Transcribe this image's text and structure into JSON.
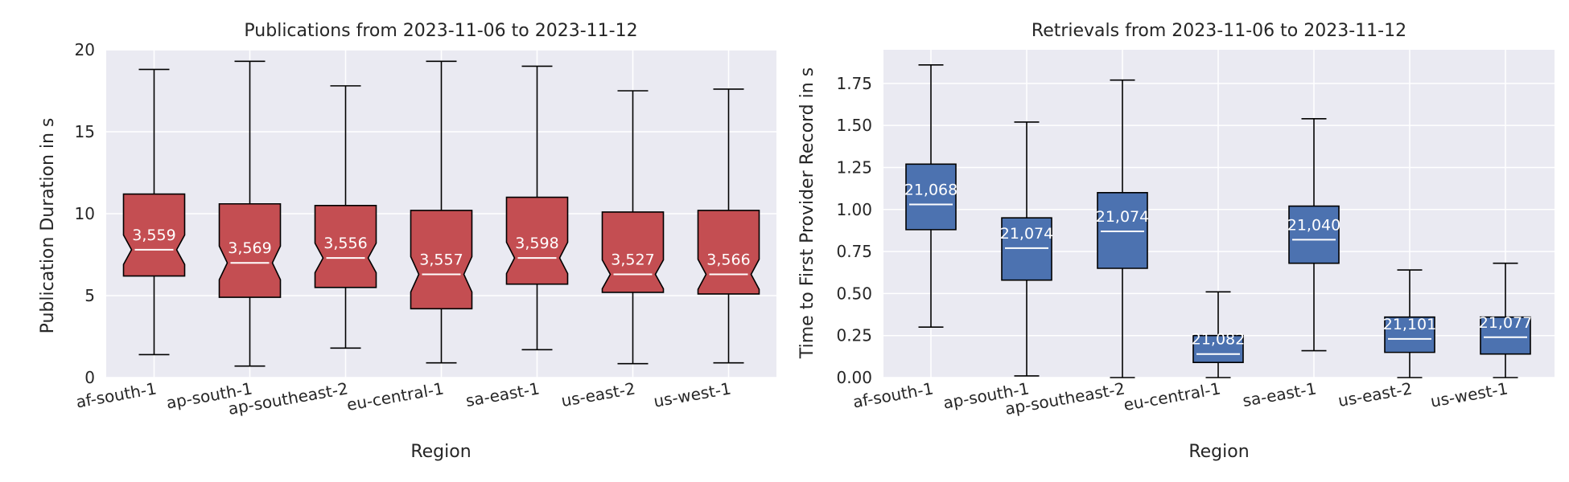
{
  "chart_data": [
    {
      "type": "box",
      "title": "Publications from 2023-11-06 to 2023-11-12",
      "xlabel": "Region",
      "ylabel": "Publication Duration in s",
      "ylim": [
        0,
        20
      ],
      "yticks": [
        0,
        5,
        10,
        15,
        20
      ],
      "ytick_labels": [
        "0",
        "5",
        "10",
        "15",
        "20"
      ],
      "grid": true,
      "notched": true,
      "box_color": "#c44e52",
      "categories": [
        "af-south-1",
        "ap-south-1",
        "ap-southeast-2",
        "eu-central-1",
        "sa-east-1",
        "us-east-2",
        "us-west-1"
      ],
      "boxes": [
        {
          "whislo": 1.4,
          "q1": 6.2,
          "med": 7.8,
          "q3": 11.2,
          "whishi": 18.8,
          "label": "3,559"
        },
        {
          "whislo": 0.7,
          "q1": 4.9,
          "med": 7.0,
          "q3": 10.6,
          "whishi": 19.3,
          "label": "3,569"
        },
        {
          "whislo": 1.8,
          "q1": 5.5,
          "med": 7.3,
          "q3": 10.5,
          "whishi": 17.8,
          "label": "3,556"
        },
        {
          "whislo": 0.9,
          "q1": 4.2,
          "med": 6.3,
          "q3": 10.2,
          "whishi": 19.3,
          "label": "3,557"
        },
        {
          "whislo": 1.7,
          "q1": 5.7,
          "med": 7.3,
          "q3": 11.0,
          "whishi": 19.0,
          "label": "3,598"
        },
        {
          "whislo": 0.85,
          "q1": 5.2,
          "med": 6.3,
          "q3": 10.1,
          "whishi": 17.5,
          "label": "3,527"
        },
        {
          "whislo": 0.9,
          "q1": 5.1,
          "med": 6.3,
          "q3": 10.2,
          "whishi": 17.6,
          "label": "3,566"
        }
      ]
    },
    {
      "type": "box",
      "title": "Retrievals from 2023-11-06 to 2023-11-12",
      "xlabel": "Region",
      "ylabel": "Time to First Provider Record in s",
      "ylim": [
        0,
        1.95
      ],
      "yticks": [
        0,
        0.25,
        0.5,
        0.75,
        1.0,
        1.25,
        1.5,
        1.75
      ],
      "ytick_labels": [
        "0.00",
        "0.25",
        "0.50",
        "0.75",
        "1.00",
        "1.25",
        "1.50",
        "1.75"
      ],
      "grid": true,
      "notched": false,
      "box_color": "#4c72b0",
      "categories": [
        "af-south-1",
        "ap-south-1",
        "ap-southeast-2",
        "eu-central-1",
        "sa-east-1",
        "us-east-2",
        "us-west-1"
      ],
      "boxes": [
        {
          "whislo": 0.3,
          "q1": 0.88,
          "med": 1.03,
          "q3": 1.27,
          "whishi": 1.86,
          "label": "21,068"
        },
        {
          "whislo": 0.01,
          "q1": 0.58,
          "med": 0.77,
          "q3": 0.95,
          "whishi": 1.52,
          "label": "21,074"
        },
        {
          "whislo": 0.0,
          "q1": 0.65,
          "med": 0.87,
          "q3": 1.1,
          "whishi": 1.77,
          "label": "21,074"
        },
        {
          "whislo": 0.0,
          "q1": 0.09,
          "med": 0.14,
          "q3": 0.25,
          "whishi": 0.51,
          "label": "21,082"
        },
        {
          "whislo": 0.16,
          "q1": 0.68,
          "med": 0.82,
          "q3": 1.02,
          "whishi": 1.54,
          "label": "21,040"
        },
        {
          "whislo": 0.0,
          "q1": 0.15,
          "med": 0.23,
          "q3": 0.36,
          "whishi": 0.64,
          "label": "21,101"
        },
        {
          "whislo": 0.0,
          "q1": 0.14,
          "med": 0.24,
          "q3": 0.36,
          "whishi": 0.68,
          "label": "21,077"
        }
      ]
    }
  ]
}
